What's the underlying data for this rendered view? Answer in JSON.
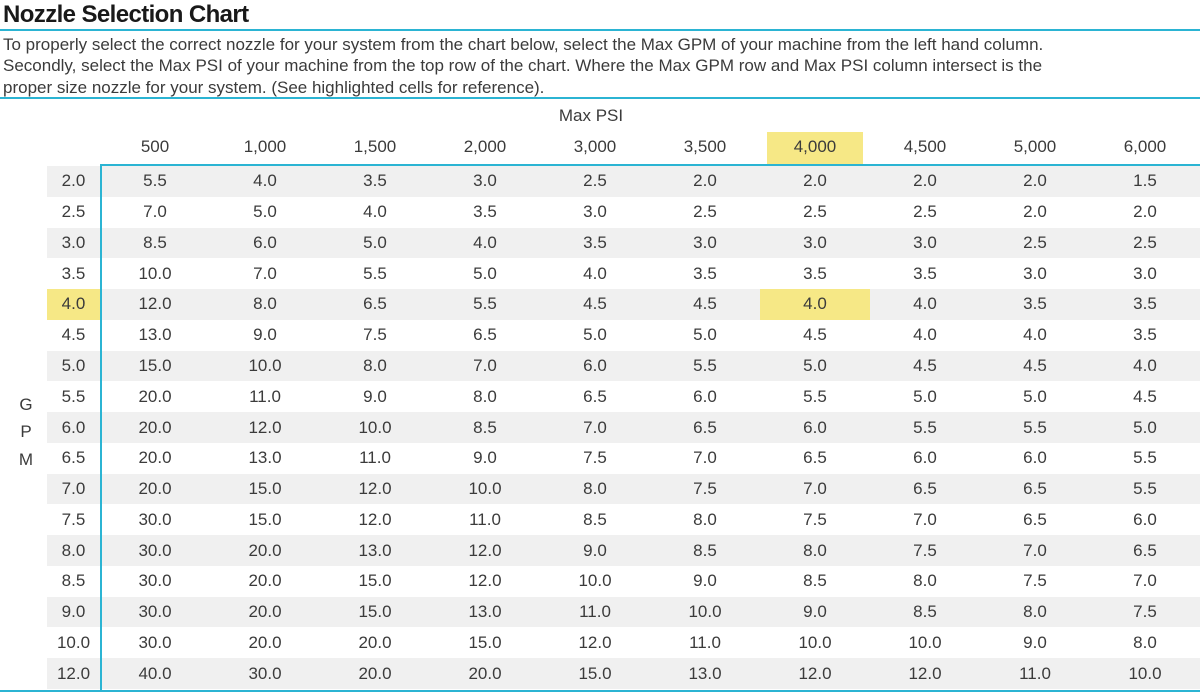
{
  "title": "Nozzle Selection Chart",
  "intro_lines": [
    "To properly select the correct nozzle for your system from the chart below, select the Max GPM of your machine from the left hand column.",
    "Secondly, select the Max PSI of your machine from the top row of the chart. Where the Max GPM row and Max PSI column intersect is the",
    "proper size nozzle for your system. (See highlighted cells for reference)."
  ],
  "colors": {
    "accent_cyan": "#2bb4d3",
    "highlight_yellow": "#f6e886",
    "stripe_gray": "#f0f0f0",
    "text": "#3b3b3b",
    "title_text": "#191919"
  },
  "chart_data": {
    "type": "table",
    "title": "Nozzle Selection Chart",
    "column_group_label": "Max PSI",
    "row_group_label": "GPM",
    "row_group_letters": [
      "G",
      "P",
      "M"
    ],
    "psi_columns": [
      "500",
      "1,000",
      "1,500",
      "2,000",
      "3,000",
      "3,500",
      "4,000",
      "4,500",
      "5,000",
      "6,000"
    ],
    "highlight": {
      "psi": "4,000",
      "gpm": "4.0",
      "intersection_value": "4.0"
    },
    "rows": [
      {
        "gpm": "2.0",
        "values": [
          "5.5",
          "4.0",
          "3.5",
          "3.0",
          "2.5",
          "2.0",
          "2.0",
          "2.0",
          "2.0",
          "1.5"
        ]
      },
      {
        "gpm": "2.5",
        "values": [
          "7.0",
          "5.0",
          "4.0",
          "3.5",
          "3.0",
          "2.5",
          "2.5",
          "2.5",
          "2.0",
          "2.0"
        ]
      },
      {
        "gpm": "3.0",
        "values": [
          "8.5",
          "6.0",
          "5.0",
          "4.0",
          "3.5",
          "3.0",
          "3.0",
          "3.0",
          "2.5",
          "2.5"
        ]
      },
      {
        "gpm": "3.5",
        "values": [
          "10.0",
          "7.0",
          "5.5",
          "5.0",
          "4.0",
          "3.5",
          "3.5",
          "3.5",
          "3.0",
          "3.0"
        ]
      },
      {
        "gpm": "4.0",
        "values": [
          "12.0",
          "8.0",
          "6.5",
          "5.5",
          "4.5",
          "4.5",
          "4.0",
          "4.0",
          "3.5",
          "3.5"
        ]
      },
      {
        "gpm": "4.5",
        "values": [
          "13.0",
          "9.0",
          "7.5",
          "6.5",
          "5.0",
          "5.0",
          "4.5",
          "4.0",
          "4.0",
          "3.5"
        ]
      },
      {
        "gpm": "5.0",
        "values": [
          "15.0",
          "10.0",
          "8.0",
          "7.0",
          "6.0",
          "5.5",
          "5.0",
          "4.5",
          "4.5",
          "4.0"
        ]
      },
      {
        "gpm": "5.5",
        "values": [
          "20.0",
          "11.0",
          "9.0",
          "8.0",
          "6.5",
          "6.0",
          "5.5",
          "5.0",
          "5.0",
          "4.5"
        ]
      },
      {
        "gpm": "6.0",
        "values": [
          "20.0",
          "12.0",
          "10.0",
          "8.5",
          "7.0",
          "6.5",
          "6.0",
          "5.5",
          "5.5",
          "5.0"
        ]
      },
      {
        "gpm": "6.5",
        "values": [
          "20.0",
          "13.0",
          "11.0",
          "9.0",
          "7.5",
          "7.0",
          "6.5",
          "6.0",
          "6.0",
          "5.5"
        ]
      },
      {
        "gpm": "7.0",
        "values": [
          "20.0",
          "15.0",
          "12.0",
          "10.0",
          "8.0",
          "7.5",
          "7.0",
          "6.5",
          "6.5",
          "5.5"
        ]
      },
      {
        "gpm": "7.5",
        "values": [
          "30.0",
          "15.0",
          "12.0",
          "11.0",
          "8.5",
          "8.0",
          "7.5",
          "7.0",
          "6.5",
          "6.0"
        ]
      },
      {
        "gpm": "8.0",
        "values": [
          "30.0",
          "20.0",
          "13.0",
          "12.0",
          "9.0",
          "8.5",
          "8.0",
          "7.5",
          "7.0",
          "6.5"
        ]
      },
      {
        "gpm": "8.5",
        "values": [
          "30.0",
          "20.0",
          "15.0",
          "12.0",
          "10.0",
          "9.0",
          "8.5",
          "8.0",
          "7.5",
          "7.0"
        ]
      },
      {
        "gpm": "9.0",
        "values": [
          "30.0",
          "20.0",
          "15.0",
          "13.0",
          "11.0",
          "10.0",
          "9.0",
          "8.5",
          "8.0",
          "7.5"
        ]
      },
      {
        "gpm": "10.0",
        "values": [
          "30.0",
          "20.0",
          "20.0",
          "15.0",
          "12.0",
          "11.0",
          "10.0",
          "10.0",
          "9.0",
          "8.0"
        ]
      },
      {
        "gpm": "12.0",
        "values": [
          "40.0",
          "30.0",
          "20.0",
          "20.0",
          "15.0",
          "13.0",
          "12.0",
          "12.0",
          "11.0",
          "10.0"
        ]
      }
    ]
  }
}
